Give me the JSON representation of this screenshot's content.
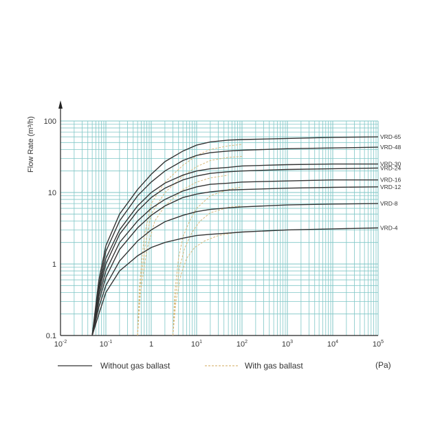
{
  "chart_data": {
    "type": "line",
    "ylabel": "Flow Rate (m³/h)",
    "x_unit": "(Pa)",
    "x_scale": "log",
    "y_scale": "log",
    "xlim": [
      0.01,
      100000
    ],
    "ylim": [
      0.1,
      100
    ],
    "grid": true,
    "x_ticks": [
      {
        "base": "10",
        "exp": "-2",
        "value": 0.01
      },
      {
        "base": "10",
        "exp": "-1",
        "value": 0.1
      },
      {
        "base": "1",
        "exp": "",
        "value": 1
      },
      {
        "base": "10",
        "exp": "1",
        "value": 10
      },
      {
        "base": "10",
        "exp": "2",
        "value": 100
      },
      {
        "base": "10",
        "exp": "3",
        "value": 1000
      },
      {
        "base": "10",
        "exp": "4",
        "value": 10000
      },
      {
        "base": "10",
        "exp": "5",
        "value": 100000
      }
    ],
    "y_ticks": [
      {
        "label": "0.1",
        "value": 0.1
      },
      {
        "label": "1",
        "value": 1
      },
      {
        "label": "10",
        "value": 10
      },
      {
        "label": "100",
        "value": 100
      }
    ],
    "legend": [
      {
        "label": "Without gas ballast",
        "style": "solid"
      },
      {
        "label": "With gas ballast",
        "style": "dashed"
      }
    ],
    "series": [
      {
        "name": "VRD-65",
        "values_x": [
          0.05,
          0.07,
          0.1,
          0.2,
          0.5,
          1,
          2,
          5,
          10,
          20,
          50,
          100,
          1000,
          10000,
          100000
        ],
        "values_y": [
          0.1,
          0.6,
          1.8,
          5,
          11,
          18,
          27,
          38,
          46,
          51,
          54,
          55,
          57,
          59,
          60
        ]
      },
      {
        "name": "VRD-48",
        "values_x": [
          0.05,
          0.07,
          0.1,
          0.2,
          0.5,
          1,
          2,
          5,
          10,
          20,
          50,
          100,
          1000,
          10000,
          100000
        ],
        "values_y": [
          0.1,
          0.5,
          1.5,
          4,
          9,
          14,
          20,
          28,
          33,
          36,
          38,
          39,
          41,
          42,
          43
        ]
      },
      {
        "name": "VRD-30",
        "values_x": [
          0.05,
          0.07,
          0.1,
          0.2,
          0.5,
          1,
          2,
          5,
          10,
          20,
          50,
          100,
          1000,
          10000,
          100000
        ],
        "values_y": [
          0.1,
          0.45,
          1.2,
          3,
          6.5,
          10,
          13.5,
          17.5,
          20,
          21.5,
          22.5,
          23.5,
          24.5,
          25,
          25
        ]
      },
      {
        "name": "VRD-24",
        "values_x": [
          0.05,
          0.07,
          0.1,
          0.2,
          0.5,
          1,
          2,
          5,
          10,
          20,
          50,
          100,
          1000,
          10000,
          100000
        ],
        "values_y": [
          0.1,
          0.4,
          1.0,
          2.6,
          5.5,
          8.5,
          11.5,
          15,
          17,
          18.5,
          19.5,
          20,
          21,
          21.5,
          22
        ]
      },
      {
        "name": "VRD-16",
        "values_x": [
          0.05,
          0.07,
          0.1,
          0.2,
          0.5,
          1,
          2,
          5,
          10,
          20,
          50,
          100,
          1000,
          10000,
          100000
        ],
        "values_y": [
          0.1,
          0.35,
          0.8,
          2.0,
          4.0,
          6.0,
          8.0,
          10.5,
          12,
          13,
          13.5,
          14,
          14.5,
          15,
          15
        ]
      },
      {
        "name": "VRD-12",
        "values_x": [
          0.05,
          0.07,
          0.1,
          0.2,
          0.5,
          1,
          2,
          5,
          10,
          20,
          50,
          100,
          1000,
          10000,
          100000
        ],
        "values_y": [
          0.1,
          0.3,
          0.65,
          1.6,
          3.2,
          4.8,
          6.5,
          8.5,
          9.5,
          10.2,
          10.8,
          11,
          11.5,
          11.8,
          12
        ]
      },
      {
        "name": "VRD-8",
        "values_x": [
          0.05,
          0.07,
          0.1,
          0.2,
          0.5,
          1,
          2,
          5,
          10,
          20,
          50,
          100,
          1000,
          10000,
          100000
        ],
        "values_y": [
          0.1,
          0.25,
          0.5,
          1.1,
          2.1,
          3.0,
          3.9,
          4.8,
          5.4,
          5.8,
          6.1,
          6.3,
          6.7,
          6.9,
          7
        ]
      },
      {
        "name": "VRD-4",
        "values_x": [
          0.05,
          0.07,
          0.1,
          0.2,
          0.5,
          1,
          2,
          5,
          10,
          20,
          50,
          100,
          1000,
          10000,
          100000
        ],
        "values_y": [
          0.1,
          0.2,
          0.4,
          0.8,
          1.3,
          1.7,
          2.0,
          2.3,
          2.5,
          2.6,
          2.7,
          2.8,
          3.0,
          3.1,
          3.2
        ]
      }
    ],
    "ballast_series": [
      {
        "values_x": [
          0.5,
          0.55,
          0.7,
          1,
          2,
          5,
          10,
          20,
          50,
          100
        ],
        "values_y": [
          0.1,
          0.5,
          2.5,
          7,
          14,
          24,
          33,
          40,
          45,
          47
        ]
      },
      {
        "values_x": [
          0.5,
          0.56,
          0.75,
          1,
          2,
          5,
          10,
          20,
          50,
          100
        ],
        "values_y": [
          0.1,
          0.45,
          2,
          5,
          10,
          17,
          23,
          28,
          31,
          32
        ]
      },
      {
        "values_x": [
          0.5,
          0.58,
          0.8,
          1.2,
          2,
          5,
          10,
          20,
          50
        ],
        "values_y": [
          0.1,
          0.4,
          1.6,
          4,
          6.5,
          11,
          14,
          16,
          17.5
        ]
      },
      {
        "values_x": [
          3,
          3.3,
          4,
          5,
          7,
          10,
          20,
          50,
          100
        ],
        "values_y": [
          0.1,
          0.4,
          1.2,
          2.4,
          4,
          6,
          9,
          11,
          12
        ]
      },
      {
        "values_x": [
          3,
          3.4,
          4.2,
          5.5,
          8,
          12,
          20,
          50,
          100
        ],
        "values_y": [
          0.1,
          0.35,
          0.9,
          1.7,
          2.8,
          4,
          5.2,
          6.2,
          6.5
        ]
      },
      {
        "values_x": [
          3,
          3.5,
          4.5,
          6,
          9,
          15,
          30,
          60,
          100
        ],
        "values_y": [
          0.1,
          0.3,
          0.7,
          1.2,
          1.7,
          2.1,
          2.5,
          2.7,
          2.8
        ]
      }
    ],
    "colors": {
      "grid": "#7fc6c6",
      "line": "#333333",
      "ballast": "#d9b97a",
      "axis": "#222222"
    }
  }
}
